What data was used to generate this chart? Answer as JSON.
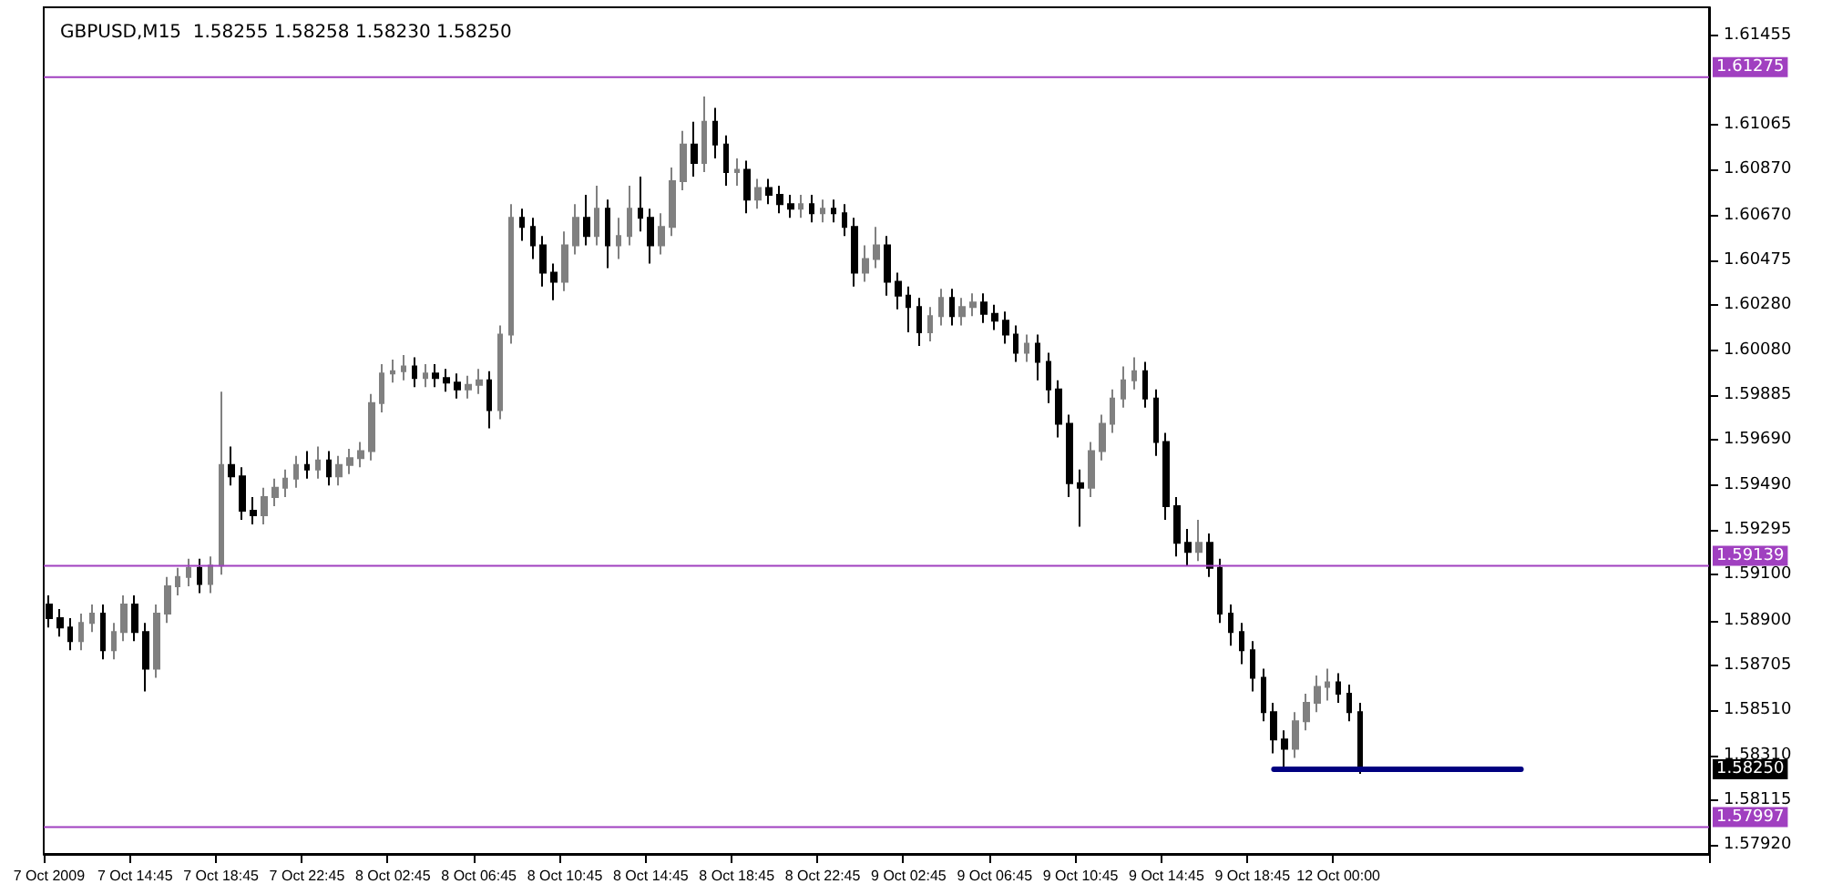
{
  "chart_data": {
    "type": "candlestick",
    "title": "GBPUSD,M15  1.58255 1.58258 1.58230 1.58250",
    "colors": [
      "#000000",
      "#000000",
      "#000000",
      "#808080",
      "#808080",
      "#000000",
      "#808080",
      "#808080",
      "#000000",
      "#000000",
      "#808080",
      "#808080",
      "#808080",
      "#808080",
      "#000000",
      "#808080",
      "#808080",
      "#000000",
      "#000000",
      "#000000",
      "#808080",
      "#808080",
      "#808080",
      "#808080",
      "#000000",
      "#808080",
      "#000000",
      "#808080",
      "#808080",
      "#808080",
      "#808080",
      "#808080",
      "#808080",
      "#808080",
      "#000000",
      "#808080",
      "#000000",
      "#000000",
      "#000000",
      "#808080",
      "#808080",
      "#000000",
      "#808080",
      "#808080",
      "#000000",
      "#000000",
      "#000000",
      "#000000",
      "#808080",
      "#808080",
      "#000000",
      "#808080",
      "#000000",
      "#808080",
      "#808080",
      "#000000",
      "#000000",
      "#808080",
      "#808080",
      "#808080",
      "#000000",
      "#808080",
      "#000000",
      "#000000",
      "#808080",
      "#000000",
      "#808080",
      "#000000",
      "#000000",
      "#000000",
      "#808080",
      "#000000",
      "#808080",
      "#000000",
      "#000000",
      "#000000",
      "#808080",
      "#808080",
      "#000000",
      "#000000",
      "#000000",
      "#000000",
      "#808080",
      "#808080",
      "#000000",
      "#808080",
      "#808080",
      "#000000",
      "#000000",
      "#000000",
      "#000000",
      "#808080",
      "#000000",
      "#000000",
      "#000000",
      "#000000",
      "#000000",
      "#808080",
      "#808080",
      "#808080",
      "#808080",
      "#808080",
      "#000000",
      "#000000",
      "#000000",
      "#000000",
      "#000000",
      "#808080",
      "#000000",
      "#000000",
      "#000000",
      "#000000",
      "#000000",
      "#000000",
      "#000000",
      "#000000",
      "#808080",
      "#808080",
      "#808080",
      "#808080",
      "#000000",
      "#000000",
      "#000000",
      null,
      null,
      null,
      null,
      null,
      null,
      null,
      null,
      null,
      null,
      null,
      null,
      null,
      null,
      null,
      null,
      null,
      null,
      null,
      null,
      null,
      null,
      null,
      null,
      null,
      null,
      null,
      null,
      null,
      null,
      null,
      null
    ],
    "categories": [
      "7 Oct 2009",
      null,
      null,
      null,
      null,
      null,
      null,
      null,
      "7 Oct 14:45",
      null,
      null,
      null,
      null,
      null,
      null,
      null,
      "7 Oct 18:45",
      null,
      null,
      null,
      null,
      null,
      null,
      null,
      "7 Oct 22:45",
      null,
      null,
      null,
      null,
      null,
      null,
      null,
      "8 Oct 02:45",
      null,
      null,
      null,
      null,
      null,
      null,
      null,
      "8 Oct 06:45",
      null,
      null,
      null,
      null,
      null,
      null,
      null,
      "8 Oct 10:45",
      null,
      null,
      null,
      null,
      null,
      null,
      null,
      "8 Oct 14:45",
      null,
      null,
      null,
      null,
      null,
      null,
      null,
      "8 Oct 18:45",
      null,
      null,
      null,
      null,
      null,
      null,
      null,
      "8 Oct 22:45",
      null,
      null,
      null,
      null,
      null,
      null,
      null,
      "9 Oct 02:45",
      null,
      null,
      null,
      null,
      null,
      null,
      null,
      "9 Oct 06:45",
      null,
      null,
      null,
      null,
      null,
      null,
      null,
      "9 Oct 10:45",
      null,
      null,
      null,
      null,
      null,
      null,
      null,
      "9 Oct 14:45",
      null,
      null,
      null,
      null,
      null,
      null,
      null,
      "9 Oct 18:45",
      null,
      null,
      null,
      null,
      null,
      null,
      null,
      "12 Oct 00:00",
      null,
      null,
      null,
      null,
      null,
      null,
      null,
      null,
      null,
      null,
      null,
      null,
      null,
      null,
      null,
      null,
      null,
      null,
      null,
      null,
      null,
      null,
      null,
      null,
      null,
      null,
      null,
      null,
      null,
      null,
      null,
      null,
      null,
      null
    ],
    "ohlc": [
      [
        1.5897,
        1.5901,
        1.5887,
        1.5891
      ],
      [
        1.5891,
        1.5895,
        1.5883,
        1.5887
      ],
      [
        1.5887,
        1.5891,
        1.5877,
        1.5881
      ],
      [
        1.5881,
        1.5893,
        1.5877,
        1.5889
      ],
      [
        1.5889,
        1.5897,
        1.5885,
        1.5893
      ],
      [
        1.5893,
        1.5897,
        1.5873,
        1.5877
      ],
      [
        1.5877,
        1.5889,
        1.5873,
        1.5885
      ],
      [
        1.5885,
        1.5901,
        1.5881,
        1.5897
      ],
      [
        1.5897,
        1.5901,
        1.5881,
        1.5885
      ],
      [
        1.5885,
        1.5889,
        1.5859,
        1.5869
      ],
      [
        1.5869,
        1.5897,
        1.5865,
        1.5893
      ],
      [
        1.5893,
        1.5909,
        1.5889,
        1.5905
      ],
      [
        1.5905,
        1.5913,
        1.5901,
        1.5909
      ],
      [
        1.5909,
        1.5917,
        1.5905,
        1.5913
      ],
      [
        1.5913,
        1.5917,
        1.5902,
        1.5906
      ],
      [
        1.5906,
        1.5918,
        1.5902,
        1.5914
      ],
      [
        1.5914,
        1.599,
        1.591,
        1.5958
      ],
      [
        1.5958,
        1.5966,
        1.5949,
        1.5953
      ],
      [
        1.5953,
        1.5957,
        1.5934,
        1.5938
      ],
      [
        1.5938,
        1.5944,
        1.5932,
        1.5936
      ],
      [
        1.5936,
        1.5948,
        1.5932,
        1.5944
      ],
      [
        1.5944,
        1.5952,
        1.594,
        1.5948
      ],
      [
        1.5948,
        1.5956,
        1.5944,
        1.5952
      ],
      [
        1.5952,
        1.5962,
        1.5948,
        1.5958
      ],
      [
        1.5958,
        1.5964,
        1.5952,
        1.5956
      ],
      [
        1.5956,
        1.5966,
        1.5952,
        1.596
      ],
      [
        1.596,
        1.5964,
        1.5949,
        1.5953
      ],
      [
        1.5953,
        1.5962,
        1.5949,
        1.5958
      ],
      [
        1.5958,
        1.5965,
        1.5954,
        1.5961
      ],
      [
        1.5961,
        1.5968,
        1.5957,
        1.5964
      ],
      [
        1.5964,
        1.5989,
        1.596,
        1.5985
      ],
      [
        1.5985,
        1.6002,
        1.5981,
        1.5998
      ],
      [
        1.5998,
        1.6004,
        1.5994,
        1.5999
      ],
      [
        1.5999,
        1.6006,
        1.5995,
        1.6001
      ],
      [
        1.6001,
        1.6005,
        1.5992,
        1.5996
      ],
      [
        1.5996,
        1.6002,
        1.5992,
        1.5998
      ],
      [
        1.5998,
        1.6002,
        1.5992,
        1.5996
      ],
      [
        1.5996,
        1.6,
        1.599,
        1.5994
      ],
      [
        1.5994,
        1.5998,
        1.5987,
        1.5991
      ],
      [
        1.5991,
        1.5997,
        1.5987,
        1.5993
      ],
      [
        1.5993,
        1.6,
        1.5989,
        1.5995
      ],
      [
        1.5995,
        1.5999,
        1.5974,
        1.5982
      ],
      [
        1.5982,
        1.6019,
        1.5978,
        1.6015
      ],
      [
        1.6015,
        1.6072,
        1.6011,
        1.6066
      ],
      [
        1.6066,
        1.607,
        1.6056,
        1.6062
      ],
      [
        1.6062,
        1.6066,
        1.6048,
        1.6054
      ],
      [
        1.6054,
        1.6058,
        1.6036,
        1.6042
      ],
      [
        1.6042,
        1.6046,
        1.603,
        1.6038
      ],
      [
        1.6038,
        1.606,
        1.6034,
        1.6054
      ],
      [
        1.6054,
        1.6072,
        1.605,
        1.6066
      ],
      [
        1.6066,
        1.6076,
        1.6054,
        1.6058
      ],
      [
        1.6058,
        1.608,
        1.6054,
        1.607
      ],
      [
        1.607,
        1.6074,
        1.6044,
        1.6054
      ],
      [
        1.6054,
        1.6066,
        1.6048,
        1.6058
      ],
      [
        1.6058,
        1.608,
        1.6054,
        1.607
      ],
      [
        1.607,
        1.6084,
        1.606,
        1.6066
      ],
      [
        1.6066,
        1.607,
        1.6046,
        1.6054
      ],
      [
        1.6054,
        1.6068,
        1.605,
        1.6062
      ],
      [
        1.6062,
        1.6088,
        1.6058,
        1.6082
      ],
      [
        1.6082,
        1.6104,
        1.6078,
        1.6098
      ],
      [
        1.6098,
        1.6108,
        1.6084,
        1.609
      ],
      [
        1.609,
        1.6119,
        1.6086,
        1.6108
      ],
      [
        1.6108,
        1.6114,
        1.6092,
        1.6098
      ],
      [
        1.6098,
        1.6102,
        1.608,
        1.6086
      ],
      [
        1.6086,
        1.6092,
        1.608,
        1.6087
      ],
      [
        1.6087,
        1.6091,
        1.6068,
        1.6074
      ],
      [
        1.6074,
        1.6083,
        1.607,
        1.6079
      ],
      [
        1.6079,
        1.6083,
        1.6072,
        1.6076
      ],
      [
        1.6076,
        1.608,
        1.6068,
        1.6072
      ],
      [
        1.6072,
        1.6076,
        1.6066,
        1.607
      ],
      [
        1.607,
        1.6076,
        1.6066,
        1.6072
      ],
      [
        1.6072,
        1.6076,
        1.6064,
        1.6068
      ],
      [
        1.6068,
        1.6074,
        1.6064,
        1.607
      ],
      [
        1.607,
        1.6074,
        1.6064,
        1.6068
      ],
      [
        1.6068,
        1.6072,
        1.6058,
        1.6062
      ],
      [
        1.6062,
        1.6066,
        1.6036,
        1.6042
      ],
      [
        1.6042,
        1.6054,
        1.6038,
        1.6048
      ],
      [
        1.6048,
        1.6062,
        1.6044,
        1.6054
      ],
      [
        1.6054,
        1.6058,
        1.6032,
        1.6038
      ],
      [
        1.6038,
        1.6042,
        1.6026,
        1.6032
      ],
      [
        1.6032,
        1.6036,
        1.6016,
        1.6027
      ],
      [
        1.6027,
        1.6031,
        1.601,
        1.6016
      ],
      [
        1.6016,
        1.6027,
        1.6012,
        1.6023
      ],
      [
        1.6023,
        1.6035,
        1.6019,
        1.6031
      ],
      [
        1.6031,
        1.6035,
        1.6019,
        1.6023
      ],
      [
        1.6023,
        1.6031,
        1.6019,
        1.6027
      ],
      [
        1.6027,
        1.6033,
        1.6023,
        1.6029
      ],
      [
        1.6029,
        1.6033,
        1.602,
        1.6024
      ],
      [
        1.6024,
        1.6028,
        1.6017,
        1.6021
      ],
      [
        1.6021,
        1.6025,
        1.6011,
        1.6015
      ],
      [
        1.6015,
        1.6019,
        1.6003,
        1.6007
      ],
      [
        1.6007,
        1.6015,
        1.6003,
        1.6011
      ],
      [
        1.6011,
        1.6015,
        1.5995,
        1.6003
      ],
      [
        1.6003,
        1.6007,
        1.5985,
        1.5991
      ],
      [
        1.5991,
        1.5995,
        1.597,
        1.5976
      ],
      [
        1.5976,
        1.598,
        1.5944,
        1.595
      ],
      [
        1.595,
        1.5956,
        1.5931,
        1.5948
      ],
      [
        1.5948,
        1.5968,
        1.5944,
        1.5964
      ],
      [
        1.5964,
        1.598,
        1.596,
        1.5976
      ],
      [
        1.5976,
        1.5991,
        1.5972,
        1.5987
      ],
      [
        1.5987,
        1.6001,
        1.5983,
        1.5995
      ],
      [
        1.5995,
        1.6005,
        1.5991,
        1.5999
      ],
      [
        1.5999,
        1.6003,
        1.5983,
        1.5987
      ],
      [
        1.5987,
        1.5991,
        1.5962,
        1.5968
      ],
      [
        1.5968,
        1.5972,
        1.5934,
        1.594
      ],
      [
        1.594,
        1.5944,
        1.5918,
        1.5924
      ],
      [
        1.5924,
        1.593,
        1.5914,
        1.592
      ],
      [
        1.592,
        1.5934,
        1.5916,
        1.5924
      ],
      [
        1.5924,
        1.5928,
        1.5909,
        1.5913
      ],
      [
        1.5913,
        1.5917,
        1.5889,
        1.5893
      ],
      [
        1.5893,
        1.5897,
        1.5879,
        1.5885
      ],
      [
        1.5885,
        1.5889,
        1.5871,
        1.5877
      ],
      [
        1.5877,
        1.5881,
        1.5859,
        1.5865
      ],
      [
        1.5865,
        1.5869,
        1.5846,
        1.585
      ],
      [
        1.585,
        1.5854,
        1.5832,
        1.5838
      ],
      [
        1.5838,
        1.5842,
        1.5824,
        1.5834
      ],
      [
        1.5834,
        1.585,
        1.583,
        1.5846
      ],
      [
        1.5846,
        1.5858,
        1.5842,
        1.5854
      ],
      [
        1.5854,
        1.5866,
        1.585,
        1.5861
      ],
      [
        1.5861,
        1.5869,
        1.5855,
        1.5863
      ],
      [
        1.5863,
        1.5867,
        1.5854,
        1.5858
      ],
      [
        1.5858,
        1.5862,
        1.5846,
        1.585
      ],
      [
        1.585,
        1.5854,
        1.5823,
        1.5825
      ],
      null,
      null,
      null,
      null,
      null,
      null,
      null,
      null,
      null,
      null,
      null,
      null,
      null,
      null,
      null,
      null,
      null,
      null,
      null,
      null,
      null,
      null,
      null,
      null,
      null,
      null,
      null,
      null,
      null,
      null,
      null,
      null
    ],
    "series": [
      {
        "type": "line",
        "color": "#000080",
        "values": [
          null,
          null,
          null,
          null,
          null,
          null,
          null,
          null,
          null,
          null,
          null,
          null,
          null,
          null,
          null,
          null,
          null,
          null,
          null,
          null,
          null,
          null,
          null,
          null,
          null,
          null,
          null,
          null,
          null,
          null,
          null,
          null,
          null,
          null,
          null,
          null,
          null,
          null,
          null,
          null,
          null,
          null,
          null,
          null,
          null,
          null,
          null,
          null,
          null,
          null,
          null,
          null,
          null,
          null,
          null,
          null,
          null,
          null,
          null,
          null,
          null,
          null,
          null,
          null,
          null,
          null,
          null,
          null,
          null,
          null,
          null,
          null,
          null,
          null,
          null,
          null,
          null,
          null,
          null,
          null,
          null,
          null,
          null,
          null,
          null,
          null,
          null,
          null,
          null,
          null,
          null,
          null,
          null,
          null,
          null,
          null,
          null,
          null,
          null,
          null,
          null,
          null,
          null,
          null,
          null,
          null,
          null,
          null,
          null,
          null,
          null,
          null,
          null,
          null,
          1.5825,
          1.5825,
          1.5825,
          1.5825,
          1.5825,
          1.5825,
          1.5825,
          1.5825,
          1.5825,
          1.5825,
          1.5825,
          1.5825,
          1.5825,
          1.5825,
          1.5825,
          1.5825,
          1.5825,
          1.5825,
          1.5825,
          1.5825,
          1.5825,
          1.5825,
          1.5825,
          1.5825,
          null,
          null,
          null,
          null,
          null,
          null,
          null,
          null,
          null,
          null,
          null,
          null,
          null,
          null,
          null,
          null,
          null
        ]
      }
    ],
    "ylim": [
      1.5788,
      1.6158
    ],
    "yticks": [
      {
        "value": 1.5792,
        "label": "1.57920"
      },
      {
        "value": 1.58115,
        "label": "1.58115"
      },
      {
        "value": 1.5831,
        "label": "1.58310"
      },
      {
        "value": 1.5851,
        "label": "1.58510"
      },
      {
        "value": 1.58705,
        "label": "1.58705"
      },
      {
        "value": 1.589,
        "label": "1.58900"
      },
      {
        "value": 1.591,
        "label": "1.59100"
      },
      {
        "value": 1.59295,
        "label": "1.59295"
      },
      {
        "value": 1.5949,
        "label": "1.59490"
      },
      {
        "value": 1.5969,
        "label": "1.59690"
      },
      {
        "value": 1.59885,
        "label": "1.59885"
      },
      {
        "value": 1.6008,
        "label": "1.60080"
      },
      {
        "value": 1.6028,
        "label": "1.60280"
      },
      {
        "value": 1.60475,
        "label": "1.60475"
      },
      {
        "value": 1.6067,
        "label": "1.60670"
      },
      {
        "value": 1.6087,
        "label": "1.60870"
      },
      {
        "value": 1.61065,
        "label": "1.61065"
      },
      {
        "value": 1.61455,
        "label": "1.61455"
      }
    ],
    "ref_lines": [
      {
        "axis": "y",
        "value": 1.61275,
        "label": "1.61275",
        "color": "#a040c0"
      },
      {
        "axis": "y",
        "value": 1.59139,
        "label": "1.59139",
        "color": "#a040c0"
      },
      {
        "axis": "y",
        "value": 1.57997,
        "label": "1.57997",
        "color": "#a040c0"
      }
    ],
    "annotations": [
      "1.58250"
    ],
    "grid": false
  }
}
